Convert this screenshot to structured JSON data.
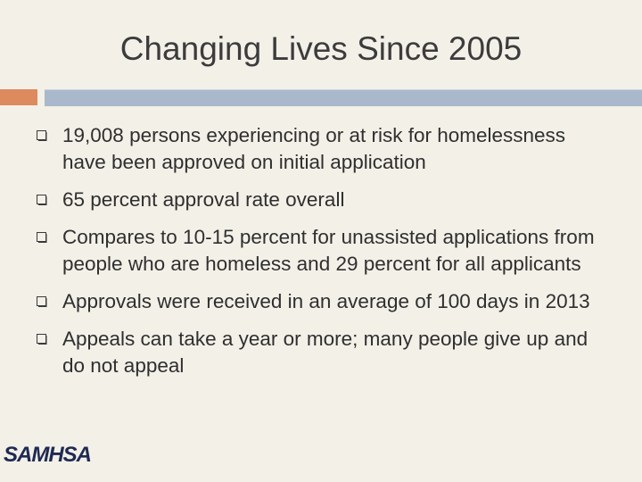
{
  "title": "Changing Lives Since 2005",
  "bullets": [
    "19,008 persons experiencing or at risk for homelessness have been approved on initial application",
    "65 percent approval rate overall",
    "Compares to 10-15 percent for unassisted applications from people who are homeless and 29 percent for all applicants",
    "Approvals were received in an average of 100 days in 2013",
    "Appeals can take a year or more; many people give up and do not appeal"
  ],
  "logo": "SAMHSA"
}
